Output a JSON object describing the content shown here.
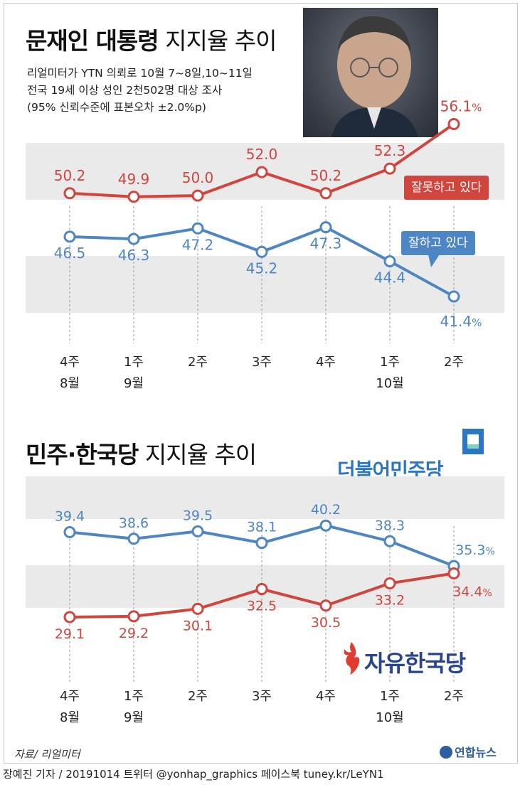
{
  "header": {
    "title_strong": "문재인 대통령",
    "title_light": "지지율 추이",
    "subtitle_lines": [
      "리얼미터가 YTN 의뢰로 10월 7~8일,10~11일",
      "전국 19세 이상 성인 2천502명 대상 조사",
      "(95% 신뢰수준에 표본오차 ±2.0%p)"
    ]
  },
  "photo": {
    "icon": "president-portrait-photo"
  },
  "section2": {
    "title_strong": "민주·한국당",
    "title_light": "지지율 추이"
  },
  "logos": {
    "democratic_party": "더불어민주당",
    "liberty_korea_party": "자유한국당",
    "yonhap": "연합뉴스"
  },
  "source": "자료/ 리얼미터",
  "footer": "장예진 기자 / 20191014 트위터 @yonhap_graphics  페이스북 tuney.kr/LeYN1",
  "colors": {
    "red": "#d0453d",
    "blue": "#4d86c4",
    "band": "#eaeaea",
    "dem": "#2b77c4",
    "lkp": "#28448a"
  },
  "chart_data": [
    {
      "type": "line",
      "categories": [
        "4주",
        "1주",
        "2주",
        "3주",
        "4주",
        "1주",
        "2주"
      ],
      "month_labels": [
        "8월",
        "9월",
        "",
        "",
        "",
        "10월",
        ""
      ],
      "series": [
        {
          "name": "잘못하고 있다",
          "values": [
            50.2,
            49.9,
            50.0,
            52.0,
            50.2,
            52.3,
            56.1
          ],
          "color": "#d0453d"
        },
        {
          "name": "잘하고 있다",
          "values": [
            46.5,
            46.3,
            47.2,
            45.2,
            47.3,
            44.4,
            41.4
          ],
          "color": "#4d86c4"
        }
      ],
      "last_value_suffix": "%",
      "grid": false,
      "legend": "callout labels near right end"
    },
    {
      "type": "line",
      "categories": [
        "4주",
        "1주",
        "2주",
        "3주",
        "4주",
        "1주",
        "2주"
      ],
      "month_labels": [
        "8월",
        "9월",
        "",
        "",
        "",
        "10월",
        ""
      ],
      "series": [
        {
          "name": "더불어민주당",
          "values": [
            39.4,
            38.6,
            39.5,
            38.1,
            40.2,
            38.3,
            35.3
          ],
          "color": "#4d86c4"
        },
        {
          "name": "자유한국당",
          "values": [
            29.1,
            29.2,
            30.1,
            32.5,
            30.5,
            33.2,
            34.4
          ],
          "color": "#d0453d"
        }
      ],
      "last_value_suffix": "%",
      "grid": false,
      "legend": "party logos"
    }
  ]
}
